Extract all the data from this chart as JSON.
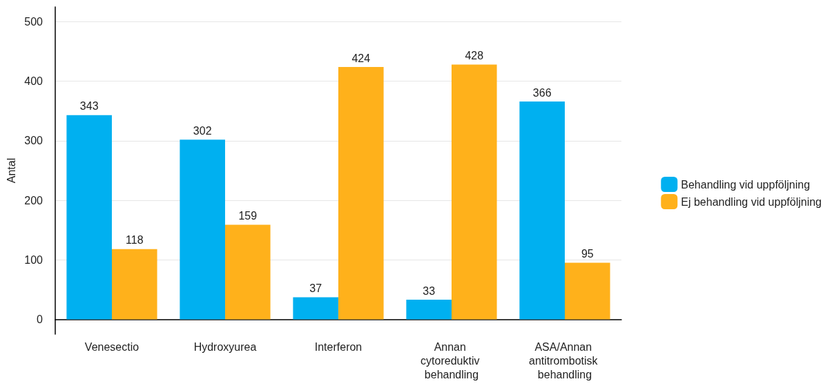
{
  "chart_data": {
    "type": "bar",
    "ylabel": "Antal",
    "categories": [
      "Venesectio",
      "Hydroxyurea",
      "Interferon",
      "Annan cytoreduktiv behandling",
      "ASA/Annan antitrombotisk behandling"
    ],
    "series": [
      {
        "name": "Behandling vid uppföljning",
        "color": "#00b0f0",
        "values": [
          343,
          302,
          37,
          33,
          366
        ]
      },
      {
        "name": "Ej behandling vid uppföljning",
        "color": "#ffb11b",
        "values": [
          118,
          159,
          424,
          428,
          95
        ]
      }
    ],
    "ylim": [
      -25,
      525
    ],
    "yticks": [
      0,
      100,
      200,
      300,
      400,
      500
    ],
    "grid": "y",
    "legend": "right",
    "data_labels": true
  }
}
